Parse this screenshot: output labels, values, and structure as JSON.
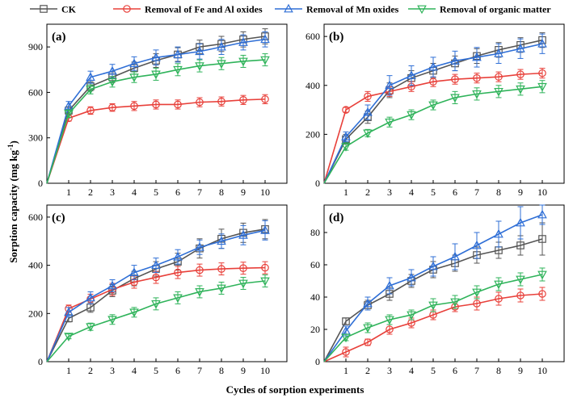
{
  "figure": {
    "xlabel": "Cycles of sorption experiments",
    "ylabel_main": "Sorption capacity (mg kg",
    "ylabel_sup": "-1",
    "ylabel_end": ")"
  },
  "legend": [
    {
      "name": "CK",
      "color": "#555555",
      "marker": "square"
    },
    {
      "name": "Removal of Fe and Al oxides",
      "color": "#e8403a",
      "marker": "circle"
    },
    {
      "name": "Removal of Mn oxides",
      "color": "#2f6fd6",
      "marker": "triangle-up"
    },
    {
      "name": "Removal of organic matter",
      "color": "#2fb35a",
      "marker": "triangle-down"
    }
  ],
  "chart_data": [
    {
      "type": "line",
      "panel": "(a)",
      "x": [
        0,
        1,
        2,
        3,
        4,
        5,
        6,
        7,
        8,
        9,
        10
      ],
      "xticks": [
        "1",
        "2",
        "3",
        "4",
        "5",
        "6",
        "7",
        "8",
        "9",
        "10"
      ],
      "ylim": [
        0,
        1050
      ],
      "yticks": [
        0,
        300,
        600,
        900
      ],
      "series": [
        {
          "name": "CK",
          "values": [
            0,
            480,
            640,
            700,
            760,
            810,
            850,
            900,
            920,
            950,
            970
          ],
          "err": [
            0,
            25,
            30,
            35,
            40,
            45,
            45,
            45,
            50,
            50,
            50
          ]
        },
        {
          "name": "Removal of Fe and Al oxides",
          "values": [
            0,
            430,
            480,
            500,
            510,
            520,
            520,
            535,
            540,
            550,
            555
          ],
          "err": [
            0,
            20,
            25,
            25,
            30,
            30,
            30,
            30,
            30,
            30,
            30
          ]
        },
        {
          "name": "Removal of Mn oxides",
          "values": [
            0,
            510,
            700,
            740,
            790,
            830,
            850,
            870,
            900,
            930,
            950
          ],
          "err": [
            0,
            30,
            40,
            45,
            45,
            50,
            50,
            50,
            50,
            50,
            50
          ]
        },
        {
          "name": "Removal of organic matter",
          "values": [
            0,
            460,
            620,
            670,
            700,
            720,
            750,
            775,
            790,
            805,
            815
          ],
          "err": [
            0,
            25,
            30,
            35,
            35,
            40,
            40,
            40,
            40,
            40,
            40
          ]
        }
      ]
    },
    {
      "type": "line",
      "panel": "(b)",
      "x": [
        0,
        1,
        2,
        3,
        4,
        5,
        6,
        7,
        8,
        9,
        10
      ],
      "xticks": [
        "1",
        "2",
        "3",
        "4",
        "5",
        "6",
        "7",
        "8",
        "9",
        "10"
      ],
      "ylim": [
        0,
        650
      ],
      "yticks": [
        0,
        200,
        400,
        600
      ],
      "series": [
        {
          "name": "CK",
          "values": [
            0,
            180,
            270,
            380,
            430,
            460,
            490,
            520,
            545,
            565,
            585
          ],
          "err": [
            0,
            20,
            25,
            30,
            30,
            30,
            30,
            30,
            30,
            30,
            30
          ]
        },
        {
          "name": "Removal of Fe and Al oxides",
          "values": [
            0,
            300,
            355,
            375,
            395,
            415,
            425,
            430,
            435,
            445,
            450
          ],
          "err": [
            0,
            10,
            20,
            20,
            20,
            20,
            20,
            20,
            20,
            20,
            20
          ]
        },
        {
          "name": "Removal of Mn oxides",
          "values": [
            0,
            190,
            290,
            400,
            440,
            475,
            500,
            515,
            530,
            550,
            570
          ],
          "err": [
            0,
            20,
            30,
            40,
            40,
            40,
            40,
            40,
            40,
            40,
            40
          ]
        },
        {
          "name": "Removal of organic matter",
          "values": [
            0,
            150,
            205,
            250,
            280,
            320,
            350,
            365,
            375,
            385,
            395
          ],
          "err": [
            0,
            15,
            15,
            20,
            20,
            20,
            25,
            25,
            25,
            25,
            25
          ]
        }
      ]
    },
    {
      "type": "line",
      "panel": "(c)",
      "x": [
        0,
        1,
        2,
        3,
        4,
        5,
        6,
        7,
        8,
        9,
        10
      ],
      "xticks": [
        "1",
        "2",
        "3",
        "4",
        "5",
        "6",
        "7",
        "8",
        "9",
        "10"
      ],
      "ylim": [
        0,
        650
      ],
      "yticks": [
        0,
        200,
        400,
        600
      ],
      "series": [
        {
          "name": "CK",
          "values": [
            0,
            180,
            225,
            295,
            345,
            385,
            415,
            470,
            510,
            535,
            550
          ],
          "err": [
            0,
            15,
            20,
            25,
            30,
            30,
            35,
            40,
            40,
            40,
            40
          ]
        },
        {
          "name": "Removal of Fe and Al oxides",
          "values": [
            0,
            220,
            260,
            300,
            330,
            350,
            370,
            380,
            385,
            388,
            390
          ],
          "err": [
            0,
            15,
            20,
            25,
            25,
            25,
            25,
            25,
            25,
            25,
            25
          ]
        },
        {
          "name": "Removal of Mn oxides",
          "values": [
            0,
            205,
            265,
            315,
            370,
            400,
            435,
            475,
            500,
            525,
            545
          ],
          "err": [
            0,
            20,
            25,
            25,
            30,
            30,
            30,
            30,
            30,
            40,
            40
          ]
        },
        {
          "name": "Removal of organic matter",
          "values": [
            0,
            105,
            145,
            175,
            205,
            240,
            265,
            290,
            305,
            325,
            335
          ],
          "err": [
            0,
            10,
            15,
            20,
            20,
            25,
            25,
            25,
            25,
            25,
            25
          ]
        }
      ]
    },
    {
      "type": "line",
      "panel": "(d)",
      "x": [
        0,
        1,
        2,
        3,
        4,
        5,
        6,
        7,
        8,
        9,
        10
      ],
      "xticks": [
        "1",
        "2",
        "3",
        "4",
        "5",
        "6",
        "7",
        "8",
        "9",
        "10"
      ],
      "ylim": [
        0,
        97
      ],
      "yticks": [
        0,
        20,
        40,
        60,
        80
      ],
      "series": [
        {
          "name": "CK",
          "values": [
            0,
            25,
            35,
            42,
            50,
            57,
            61,
            66,
            69,
            72,
            76
          ],
          "err": [
            0,
            2,
            3,
            4,
            4,
            5,
            5,
            5,
            5,
            6,
            10
          ]
        },
        {
          "name": "Removal of Fe and Al oxides",
          "values": [
            0,
            6,
            12,
            20,
            24,
            29,
            34,
            36,
            39,
            41,
            42
          ],
          "err": [
            0,
            3,
            2,
            3,
            3,
            3,
            3,
            4,
            4,
            4,
            4
          ]
        },
        {
          "name": "Removal of Mn oxides",
          "values": [
            0,
            19,
            36,
            47,
            52,
            59,
            65,
            72,
            79,
            86,
            91
          ],
          "err": [
            0,
            3,
            4,
            5,
            5,
            6,
            8,
            8,
            8,
            10,
            6
          ]
        },
        {
          "name": "Removal of organic matter",
          "values": [
            0,
            15,
            21,
            26,
            29,
            35,
            37,
            43,
            48,
            51,
            54
          ],
          "err": [
            0,
            2,
            3,
            3,
            3,
            4,
            4,
            4,
            4,
            4,
            4
          ]
        }
      ]
    }
  ]
}
